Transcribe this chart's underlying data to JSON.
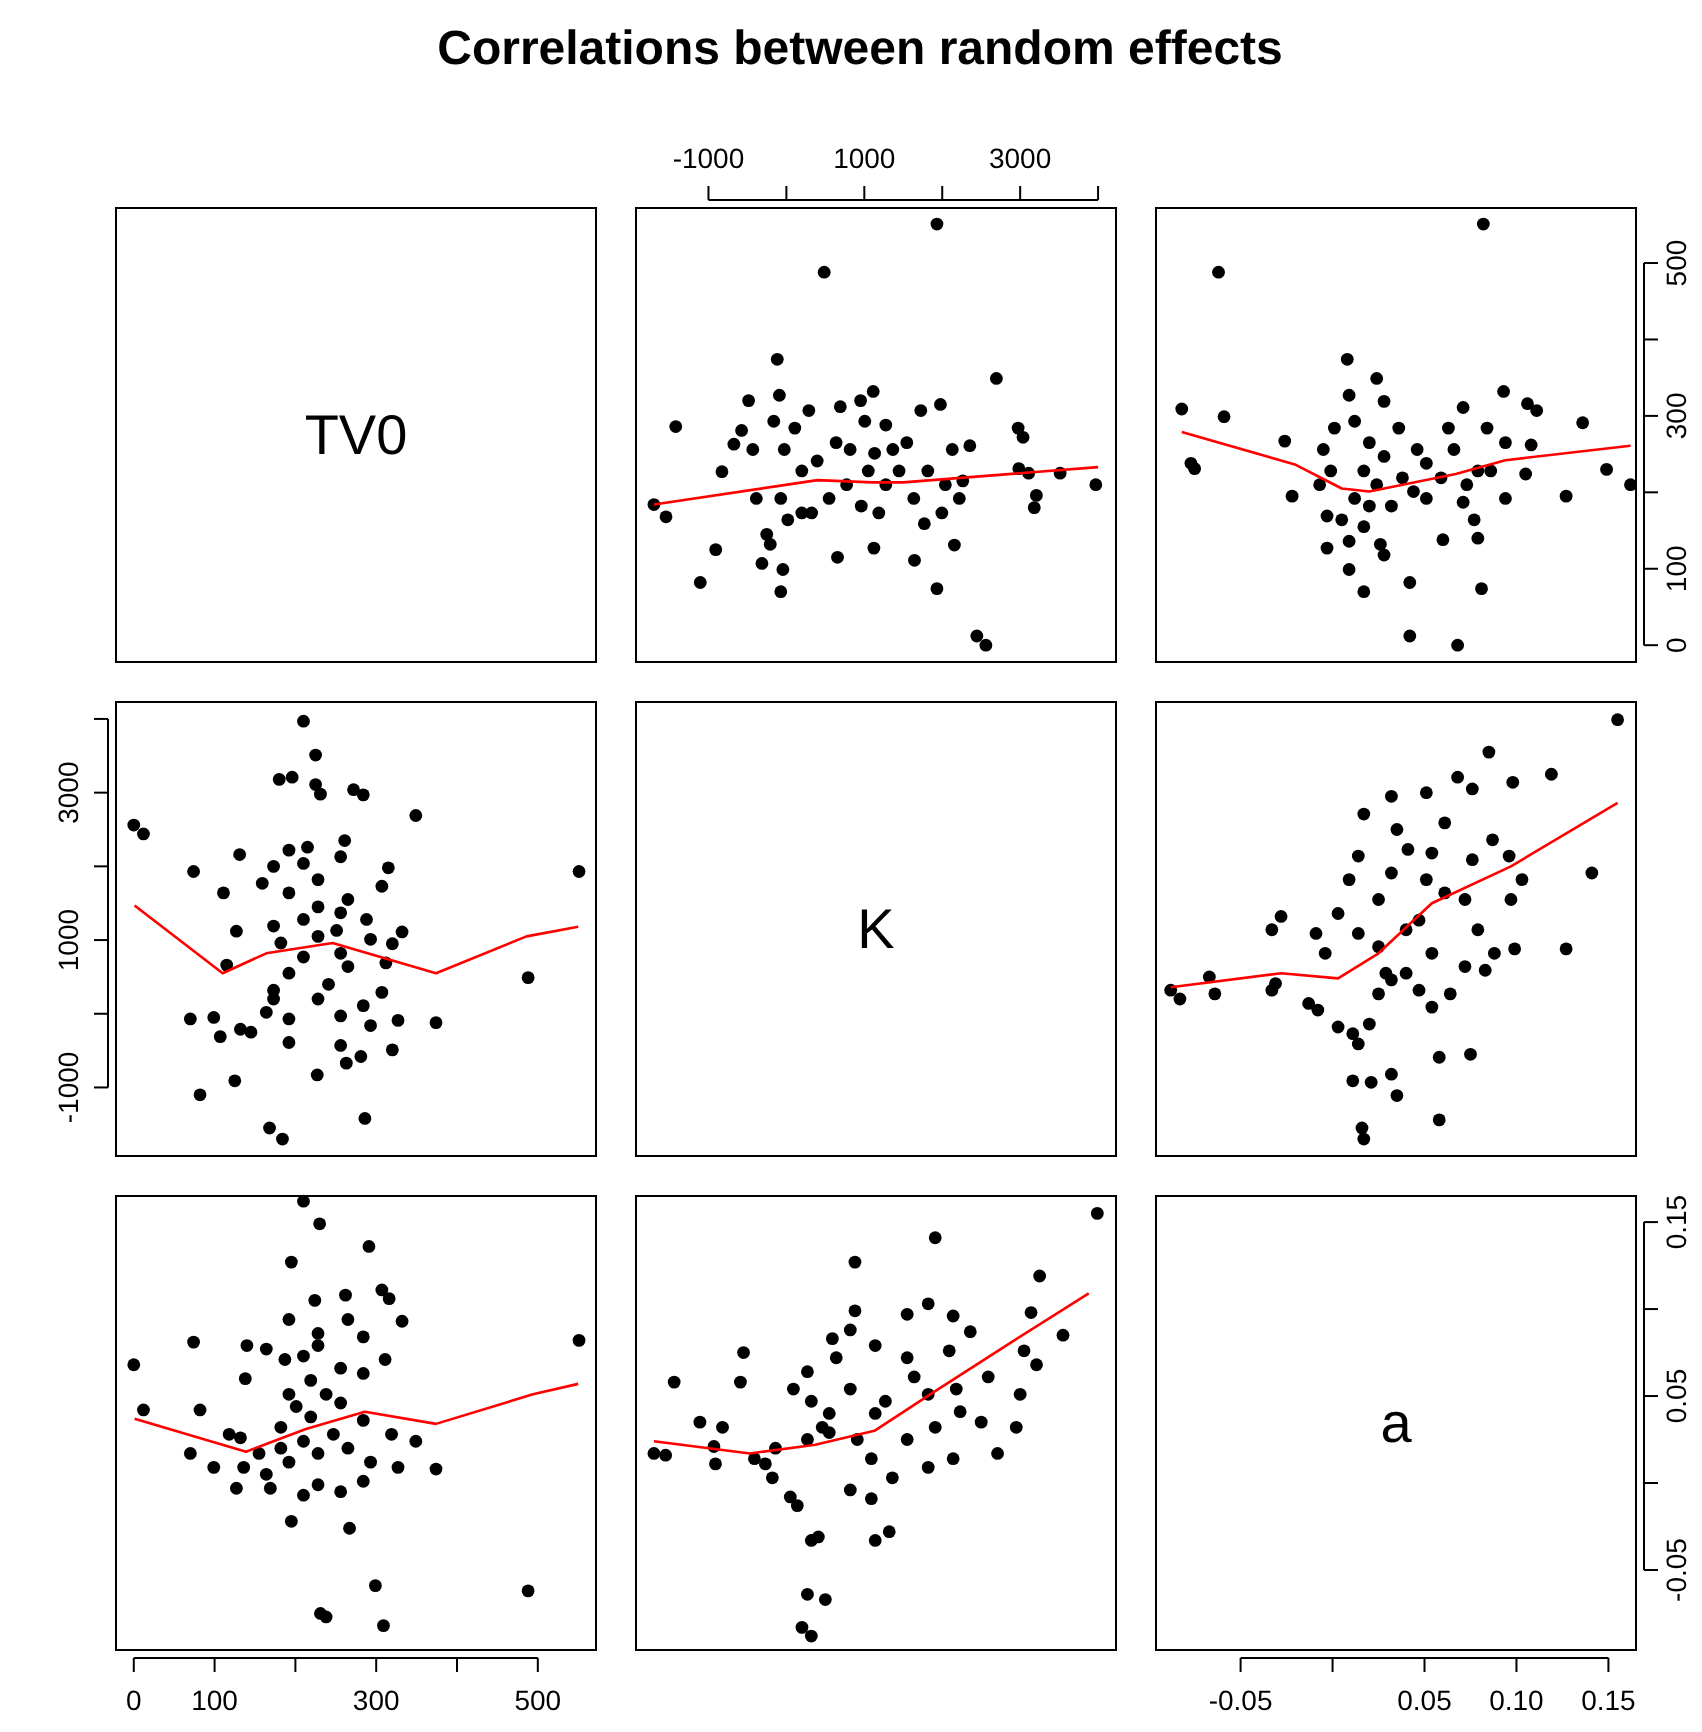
{
  "chart_data": [
    {
      "type": "other",
      "title": "Correlations between random effects",
      "annotations": [
        "TV0"
      ]
    },
    {
      "type": "scatter",
      "xlim": [
        -1930,
        4230
      ],
      "xticks": [
        -1000,
        {
          "value": 0,
          "label": null
        },
        1000,
        {
          "value": 2000,
          "label": null
        },
        3000,
        {
          "value": 4000,
          "label": null
        }
      ],
      "ylim": [
        -22,
        572
      ],
      "tick_labels": "x",
      "series": [
        {
          "type": "scatter",
          "marker": "circle",
          "color": "#000000",
          "x": [
            1932,
            485,
            -117,
            2695,
            -1420,
            -1700,
            -1545,
            -907,
            -1105,
            -72,
            -45,
            -314,
            656,
            1123,
            1644,
            1932,
            2156,
            2444,
            2560,
            2974,
            3037,
            2983,
            3109,
            3513,
            3208,
            3181,
            3971,
            1977,
            1725,
            1114,
            692,
            -90,
            -485,
            -827,
            -674,
            -575,
            -162,
            -27,
            108,
            288,
            198,
            -72,
            -252,
            -207,
            18,
            324,
            548,
            638,
            818,
            1006,
            1051,
            961,
            1186,
            1276,
            1366,
            1276,
            1545,
            1635,
            1770,
            1815,
            1995,
            2129,
            2264,
            2219,
            2354,
            2040,
            -386,
            -431,
            198,
            773,
            1132,
            1446,
            395,
            952
          ],
          "values": [
            551,
            488,
            374,
            349,
            286,
            184,
            168,
            125,
            82,
            70,
            99,
            107,
            115,
            127,
            111,
            74,
            131,
            12,
            0,
            284,
            272,
            231,
            225,
            225,
            196,
            180,
            210,
            315,
            307,
            332,
            312,
            327,
            320,
            227,
            263,
            281,
            293,
            256,
            284,
            307,
            228,
            192,
            145,
            132,
            164,
            173,
            192,
            265,
            256,
            293,
            228,
            182,
            173,
            210,
            256,
            288,
            265,
            192,
            159,
            228,
            173,
            256,
            215,
            192,
            261,
            210,
            192,
            256,
            173,
            210,
            251,
            228,
            241,
            320
          ]
        },
        {
          "type": "line",
          "color": "#ff0000",
          "x": [
            -1700,
            400,
            1100,
            1500,
            4000
          ],
          "values": [
            184,
            216,
            213,
            213,
            233
          ]
        }
      ]
    },
    {
      "type": "scatter",
      "xlim": [
        -0.096,
        0.165
      ],
      "ylim": [
        -22,
        572
      ],
      "yticks": [
        0,
        100,
        {
          "value": 200,
          "label": null
        },
        300,
        {
          "value": 400,
          "label": null
        },
        500
      ],
      "tick_labels": "y",
      "series": [
        {
          "type": "scatter",
          "marker": "circle",
          "color": "#000000",
          "x": [
            0.082,
            -0.062,
            -0.082,
            -0.059,
            -0.077,
            -0.075,
            -0.022,
            -0.026,
            0.008,
            0.024,
            0.028,
            0.009,
            0.093,
            0.106,
            0.111,
            0.136,
            0.071,
            0.149,
            0.162,
            0.127,
            0.105,
            0.108,
            0.094,
            0.081,
            0.042,
            0.042,
            0.068,
            0.017,
            0.009,
            -0.003,
            0.028,
            0.06,
            0.079,
            0.077,
            -0.005,
            0.001,
            0.012,
            0.02,
            0.036,
            0.046,
            0.051,
            0.063,
            0.066,
            0.079,
            0.084,
            0.094,
            0.073,
            0.059,
            0.044,
            0.032,
            0.024,
            0.012,
            0.005,
            -0.003,
            0.009,
            0.017,
            0.026,
            -0.007,
            -0.001,
            0.017,
            0.028,
            0.038,
            0.051,
            0.071,
            0.086,
            0.02
          ],
          "values": [
            551,
            488,
            309,
            299,
            238,
            231,
            195,
            267,
            374,
            349,
            319,
            327,
            332,
            316,
            307,
            291,
            311,
            230,
            210,
            195,
            224,
            262,
            192,
            74,
            82,
            12,
            0,
            70,
            99,
            127,
            118,
            138,
            140,
            164,
            256,
            284,
            293,
            265,
            284,
            256,
            238,
            284,
            256,
            228,
            284,
            265,
            210,
            219,
            201,
            182,
            210,
            192,
            164,
            169,
            136,
            155,
            132,
            210,
            228,
            228,
            247,
            219,
            192,
            187,
            228,
            182
          ]
        },
        {
          "type": "line",
          "color": "#ff0000",
          "x": [
            -0.082,
            -0.02,
            0.005,
            0.02,
            0.067,
            0.094,
            0.162
          ],
          "values": [
            279,
            236,
            205,
            201,
            224,
            242,
            261
          ]
        }
      ]
    },
    {
      "type": "scatter",
      "xlim": [
        -22,
        572
      ],
      "ylim": [
        -1930,
        4230
      ],
      "yticks": [
        -1000,
        {
          "value": 0,
          "label": null
        },
        1000,
        {
          "value": 2000,
          "label": null
        },
        3000,
        {
          "value": 4000,
          "label": null
        }
      ],
      "tick_labels": "y",
      "series": [
        {
          "type": "scatter",
          "marker": "circle",
          "color": "#000000",
          "x": [
            551,
            488,
            374,
            349,
            286,
            184,
            168,
            125,
            82,
            70,
            99,
            107,
            115,
            127,
            111,
            74,
            131,
            12,
            0,
            284,
            272,
            231,
            225,
            225,
            196,
            180,
            210,
            315,
            307,
            332,
            312,
            327,
            320,
            227,
            263,
            281,
            293,
            256,
            284,
            307,
            228,
            192,
            145,
            132,
            164,
            173,
            192,
            265,
            256,
            293,
            228,
            182,
            173,
            210,
            256,
            288,
            265,
            192,
            159,
            228,
            173,
            256,
            215,
            192,
            261,
            210,
            192,
            256,
            173,
            210,
            251,
            228,
            241,
            320
          ],
          "values": [
            1930,
            490,
            -120,
            2690,
            -1420,
            -1700,
            -1550,
            -910,
            -1100,
            -70,
            -50,
            -310,
            660,
            1120,
            1640,
            1930,
            2160,
            2440,
            2560,
            2970,
            3040,
            2980,
            3110,
            3510,
            3210,
            3180,
            3970,
            1980,
            1730,
            1110,
            690,
            -90,
            -490,
            -830,
            -670,
            -580,
            -160,
            -30,
            110,
            290,
            200,
            -70,
            -250,
            -210,
            20,
            320,
            550,
            640,
            820,
            1010,
            1050,
            960,
            1190,
            1280,
            1370,
            1280,
            1550,
            1640,
            1770,
            1820,
            2000,
            2130,
            2260,
            2220,
            2350,
            2040,
            -390,
            -430,
            200,
            770,
            1130,
            1450,
            400,
            950
          ]
        },
        {
          "type": "line",
          "color": "#ff0000",
          "x": [
            1,
            110,
            164,
            246,
            374,
            486,
            550
          ],
          "values": [
            1470,
            550,
            820,
            960,
            550,
            1050,
            1180
          ]
        }
      ]
    },
    {
      "type": "other",
      "annotations": [
        "K"
      ]
    },
    {
      "type": "scatter",
      "xlim": [
        -0.096,
        0.165
      ],
      "ylim": [
        -1930,
        4230
      ],
      "tick_labels": false,
      "series": [
        {
          "type": "scatter",
          "marker": "circle",
          "color": "#000000",
          "x": [
            0.155,
            0.085,
            0.068,
            0.076,
            0.098,
            0.119,
            0.051,
            0.032,
            0.017,
            0.061,
            0.035,
            0.141,
            0.127,
            0.099,
            -0.088,
            -0.083,
            -0.067,
            -0.064,
            -0.033,
            -0.031,
            -0.033,
            -0.028,
            0.058,
            0.075,
            0.035,
            0.058,
            0.016,
            0.017,
            0.021,
            0.011,
            0.032,
            -0.013,
            -0.008,
            0.003,
            0.011,
            0.014,
            0.02,
            0.025,
            0.032,
            0.04,
            0.047,
            0.054,
            0.064,
            0.072,
            0.083,
            0.088,
            0.097,
            0.103,
            0.096,
            0.087,
            0.076,
            0.072,
            0.079,
            0.061,
            0.051,
            0.054,
            0.041,
            0.032,
            0.025,
            0.014,
            0.009,
            0.003,
            -0.009,
            -0.004,
            0.014,
            0.025,
            0.04,
            0.054,
            0.047,
            0.029
          ],
          "values": [
            3990,
            3550,
            3210,
            3050,
            3140,
            3250,
            3000,
            2950,
            2710,
            2590,
            2500,
            1910,
            880,
            880,
            320,
            200,
            500,
            270,
            320,
            410,
            1140,
            1320,
            -590,
            -550,
            -1110,
            -1440,
            -1550,
            -1700,
            -930,
            -910,
            -820,
            140,
            50,
            -180,
            -270,
            -410,
            -140,
            270,
            460,
            550,
            320,
            90,
            270,
            640,
            590,
            820,
            1550,
            1820,
            2140,
            2360,
            2090,
            1550,
            1140,
            1640,
            1820,
            2180,
            2230,
            1910,
            1550,
            2140,
            1820,
            1360,
            1090,
            820,
            1090,
            910,
            1140,
            820,
            1270,
            550
          ]
        },
        {
          "type": "line",
          "color": "#ff0000",
          "x": [
            -0.088,
            -0.028,
            0.003,
            0.025,
            0.054,
            0.097,
            0.155
          ],
          "values": [
            360,
            550,
            480,
            820,
            1500,
            2000,
            2860
          ]
        }
      ]
    },
    {
      "type": "scatter",
      "xlim": [
        -22,
        572
      ],
      "xticks": [
        0,
        100,
        {
          "value": 200,
          "label": null
        },
        300,
        {
          "value": 400,
          "label": null
        },
        500
      ],
      "ylim": [
        -0.096,
        0.165
      ],
      "tick_labels": "x",
      "series": [
        {
          "type": "scatter",
          "marker": "circle",
          "color": "#000000",
          "x": [
            551,
            488,
            309,
            299,
            238,
            231,
            195,
            267,
            374,
            349,
            319,
            327,
            332,
            316,
            307,
            291,
            311,
            230,
            210,
            195,
            224,
            262,
            192,
            74,
            82,
            12,
            0,
            70,
            99,
            127,
            118,
            138,
            140,
            164,
            256,
            284,
            293,
            265,
            284,
            256,
            238,
            284,
            256,
            228,
            284,
            265,
            210,
            219,
            201,
            182,
            210,
            192,
            164,
            169,
            136,
            155,
            132,
            210,
            228,
            228,
            247,
            219,
            192,
            187,
            228,
            182
          ],
          "values": [
            0.082,
            -0.062,
            -0.082,
            -0.059,
            -0.077,
            -0.075,
            -0.022,
            -0.026,
            0.008,
            0.024,
            0.028,
            0.009,
            0.093,
            0.106,
            0.111,
            0.136,
            0.071,
            0.149,
            0.162,
            0.127,
            0.105,
            0.108,
            0.094,
            0.081,
            0.042,
            0.042,
            0.068,
            0.017,
            0.009,
            -0.003,
            0.028,
            0.06,
            0.079,
            0.077,
            -0.005,
            0.001,
            0.012,
            0.02,
            0.036,
            0.046,
            0.051,
            0.063,
            0.066,
            0.079,
            0.084,
            0.094,
            0.073,
            0.059,
            0.044,
            0.032,
            0.024,
            0.012,
            0.005,
            -0.003,
            0.009,
            0.017,
            0.026,
            -0.007,
            -0.001,
            0.017,
            0.028,
            0.038,
            0.051,
            0.071,
            0.086,
            0.02
          ]
        },
        {
          "type": "line",
          "color": "#ff0000",
          "x": [
            1,
            139,
            213,
            286,
            374,
            494,
            550
          ],
          "values": [
            0.037,
            0.018,
            0.031,
            0.041,
            0.034,
            0.051,
            0.057
          ]
        }
      ]
    },
    {
      "type": "scatter",
      "xlim": [
        -1930,
        4230
      ],
      "ylim": [
        -0.096,
        0.165
      ],
      "tick_labels": false,
      "series": [
        {
          "type": "scatter",
          "marker": "circle",
          "color": "#000000",
          "x": [
            3990,
            3550,
            3210,
            3050,
            3140,
            3250,
            3000,
            2950,
            2710,
            2590,
            2500,
            1910,
            880,
            880,
            320,
            200,
            500,
            270,
            320,
            410,
            1140,
            1320,
            -590,
            -550,
            -1110,
            -1440,
            -1550,
            -1700,
            -930,
            -910,
            -820,
            140,
            50,
            -180,
            -270,
            -410,
            -140,
            270,
            460,
            550,
            320,
            90,
            270,
            640,
            590,
            820,
            1550,
            1820,
            2140,
            2360,
            2090,
            1550,
            1140,
            1640,
            1820,
            2180,
            2230,
            1910,
            1550,
            2140,
            1820,
            1360,
            1090,
            820,
            1090,
            910,
            1140,
            820,
            1270,
            550
          ],
          "values": [
            0.155,
            0.085,
            0.068,
            0.076,
            0.098,
            0.119,
            0.051,
            0.032,
            0.017,
            0.061,
            0.035,
            0.141,
            0.127,
            0.099,
            -0.088,
            -0.083,
            -0.067,
            -0.064,
            -0.033,
            -0.031,
            -0.033,
            -0.028,
            0.058,
            0.075,
            0.035,
            0.058,
            0.016,
            0.017,
            0.021,
            0.011,
            0.032,
            -0.013,
            -0.008,
            0.003,
            0.011,
            0.014,
            0.02,
            0.025,
            0.032,
            0.04,
            0.047,
            0.054,
            0.064,
            0.072,
            0.083,
            0.088,
            0.097,
            0.103,
            0.096,
            0.087,
            0.076,
            0.072,
            0.079,
            0.061,
            0.051,
            0.054,
            0.041,
            0.032,
            0.025,
            0.014,
            0.009,
            0.003,
            -0.009,
            -0.004,
            0.014,
            0.025,
            0.04,
            0.054,
            0.047,
            0.029
          ]
        },
        {
          "type": "line",
          "color": "#ff0000",
          "x": [
            -1700,
            -470,
            370,
            1130,
            1880,
            2890,
            3880
          ],
          "values": [
            0.024,
            0.017,
            0.022,
            0.03,
            0.052,
            0.081,
            0.109
          ]
        }
      ]
    },
    {
      "type": "scatter",
      "annotations": [
        "a"
      ],
      "xlim": [
        -0.096,
        0.165
      ],
      "xticks": [
        -0.05,
        {
          "value": 0,
          "label": null
        },
        0.05,
        {
          "value": 0.1,
          "label": "0.10"
        },
        0.15
      ],
      "ylim": [
        -0.096,
        0.165
      ],
      "yticks": [
        -0.05,
        {
          "value": 0,
          "label": null
        },
        0.05,
        {
          "value": 0.1,
          "label": null
        },
        0.15
      ]
    }
  ]
}
